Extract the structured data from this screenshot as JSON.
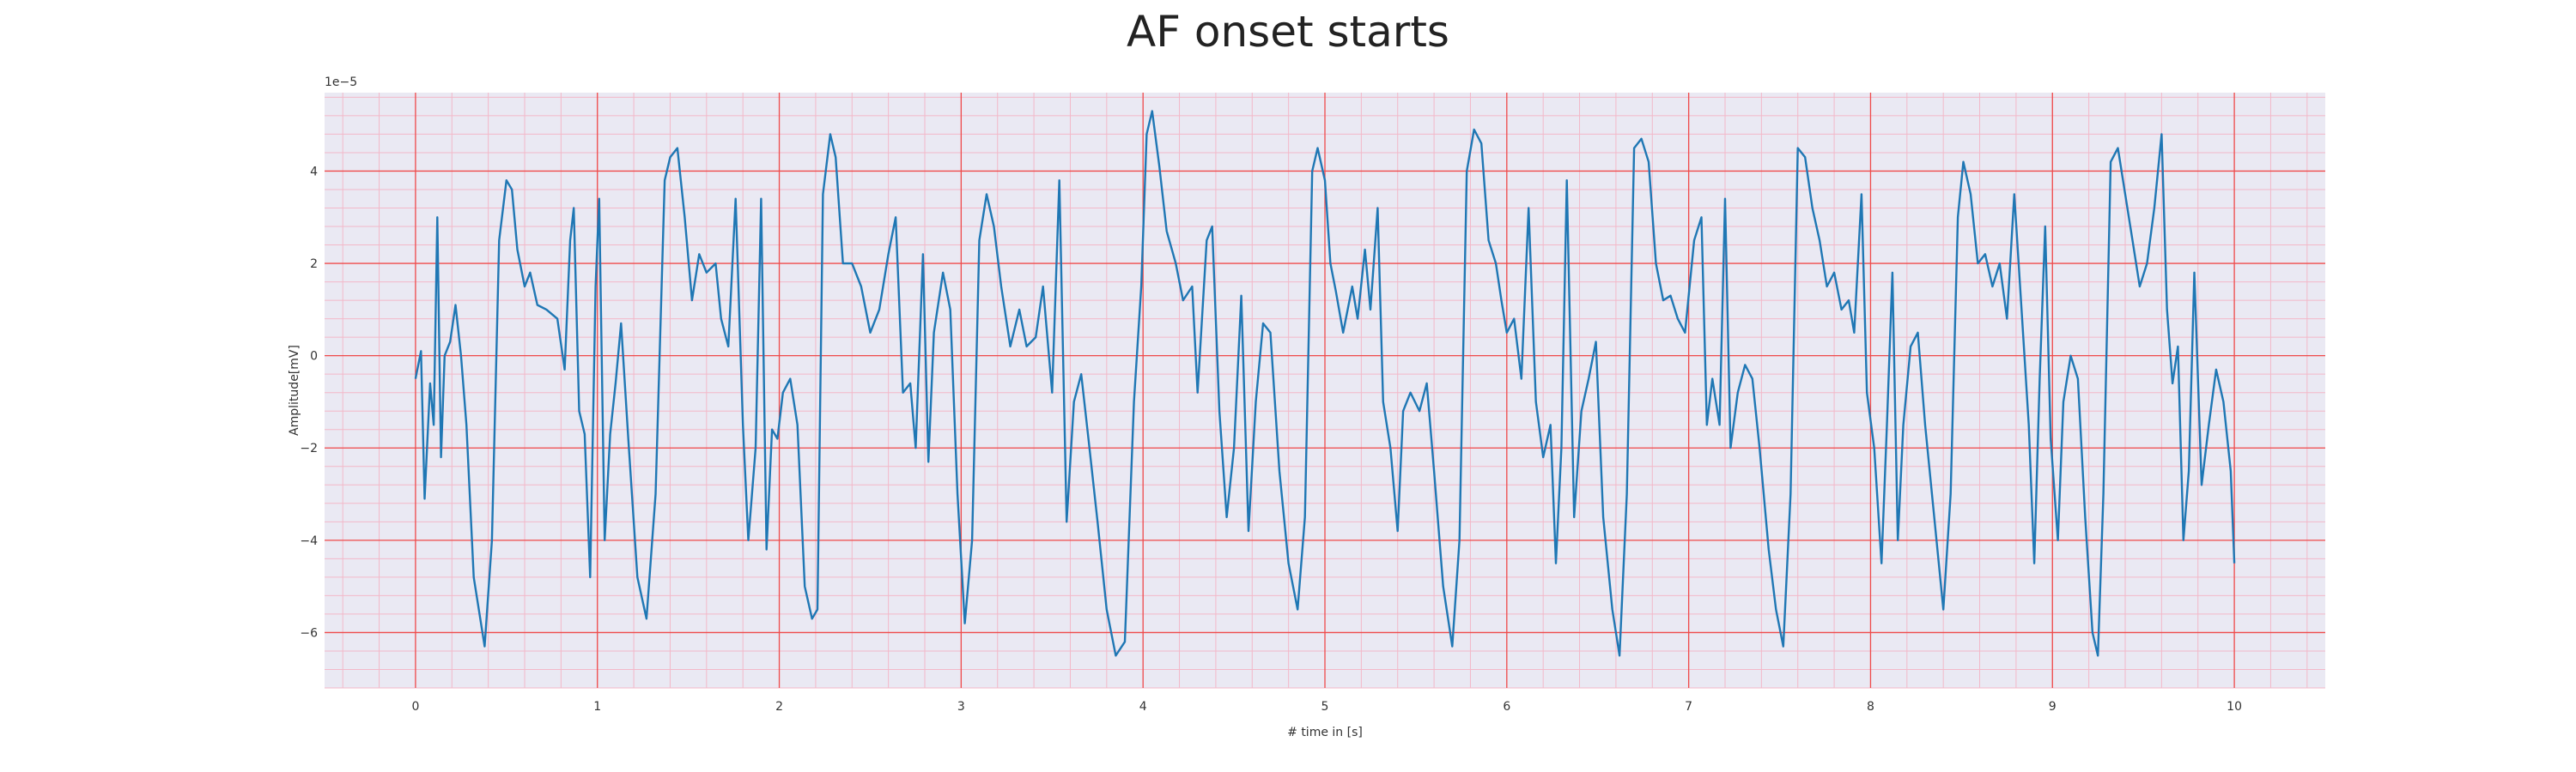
{
  "chart_data": {
    "type": "line",
    "title": "AF onset starts",
    "xlabel": "# time in [s]",
    "ylabel": "Amplitude[mV]",
    "y_multiplier": "1e−5",
    "xlim": [
      -0.5,
      10.5
    ],
    "ylim": [
      -7.2,
      5.7
    ],
    "x_ticks": [
      0,
      1,
      2,
      3,
      4,
      5,
      6,
      7,
      8,
      9,
      10
    ],
    "x_tick_labels": [
      "0",
      "1",
      "2",
      "3",
      "4",
      "5",
      "6",
      "7",
      "8",
      "9",
      "10"
    ],
    "y_ticks": [
      -6,
      -4,
      -2,
      0,
      2,
      4
    ],
    "y_tick_labels": [
      "−6",
      "−4",
      "−2",
      "0",
      "2",
      "4"
    ],
    "grid": true,
    "minor_grid": true,
    "colors": {
      "plot_background": "#eae9f3",
      "major_grid": "#ef4b4b",
      "minor_grid": "#f3b8c8",
      "line": "#1f77b4"
    },
    "series": [
      {
        "values": [
          [
            0.0,
            -0.5
          ],
          [
            0.03,
            0.1
          ],
          [
            0.05,
            -3.1
          ],
          [
            0.08,
            -0.6
          ],
          [
            0.1,
            -1.5
          ],
          [
            0.12,
            3.0
          ],
          [
            0.14,
            -2.2
          ],
          [
            0.16,
            0.0
          ],
          [
            0.19,
            0.3
          ],
          [
            0.22,
            1.1
          ],
          [
            0.25,
            0.0
          ],
          [
            0.28,
            -1.5
          ],
          [
            0.32,
            -4.8
          ],
          [
            0.38,
            -6.3
          ],
          [
            0.42,
            -4.0
          ],
          [
            0.46,
            2.5
          ],
          [
            0.5,
            3.8
          ],
          [
            0.53,
            3.6
          ],
          [
            0.56,
            2.3
          ],
          [
            0.6,
            1.5
          ],
          [
            0.63,
            1.8
          ],
          [
            0.67,
            1.1
          ],
          [
            0.72,
            1.0
          ],
          [
            0.78,
            0.8
          ],
          [
            0.82,
            -0.3
          ],
          [
            0.85,
            2.5
          ],
          [
            0.87,
            3.2
          ],
          [
            0.9,
            -1.2
          ],
          [
            0.93,
            -1.7
          ],
          [
            0.96,
            -4.8
          ],
          [
            0.99,
            1.5
          ],
          [
            1.01,
            3.4
          ],
          [
            1.04,
            -4.0
          ],
          [
            1.07,
            -1.7
          ],
          [
            1.1,
            -0.6
          ],
          [
            1.13,
            0.7
          ],
          [
            1.17,
            -1.8
          ],
          [
            1.22,
            -4.8
          ],
          [
            1.27,
            -5.7
          ],
          [
            1.32,
            -3.0
          ],
          [
            1.37,
            3.8
          ],
          [
            1.4,
            4.3
          ],
          [
            1.44,
            4.5
          ],
          [
            1.48,
            3.0
          ],
          [
            1.52,
            1.2
          ],
          [
            1.56,
            2.2
          ],
          [
            1.6,
            1.8
          ],
          [
            1.65,
            2.0
          ],
          [
            1.68,
            0.8
          ],
          [
            1.72,
            0.2
          ],
          [
            1.76,
            3.4
          ],
          [
            1.8,
            -1.5
          ],
          [
            1.83,
            -4.0
          ],
          [
            1.87,
            -2.0
          ],
          [
            1.9,
            3.4
          ],
          [
            1.93,
            -4.2
          ],
          [
            1.96,
            -1.6
          ],
          [
            1.99,
            -1.8
          ],
          [
            2.02,
            -0.8
          ],
          [
            2.06,
            -0.5
          ],
          [
            2.1,
            -1.5
          ],
          [
            2.14,
            -5.0
          ],
          [
            2.18,
            -5.7
          ],
          [
            2.21,
            -5.5
          ],
          [
            2.24,
            3.5
          ],
          [
            2.28,
            4.8
          ],
          [
            2.31,
            4.3
          ],
          [
            2.35,
            2.0
          ],
          [
            2.4,
            2.0
          ],
          [
            2.45,
            1.5
          ],
          [
            2.5,
            0.5
          ],
          [
            2.55,
            1.0
          ],
          [
            2.6,
            2.2
          ],
          [
            2.64,
            3.0
          ],
          [
            2.68,
            -0.8
          ],
          [
            2.72,
            -0.6
          ],
          [
            2.75,
            -2.0
          ],
          [
            2.79,
            2.2
          ],
          [
            2.82,
            -2.3
          ],
          [
            2.85,
            0.5
          ],
          [
            2.9,
            1.8
          ],
          [
            2.94,
            1.0
          ],
          [
            2.98,
            -3.0
          ],
          [
            3.02,
            -5.8
          ],
          [
            3.06,
            -4.0
          ],
          [
            3.1,
            2.5
          ],
          [
            3.14,
            3.5
          ],
          [
            3.18,
            2.8
          ],
          [
            3.22,
            1.5
          ],
          [
            3.27,
            0.2
          ],
          [
            3.32,
            1.0
          ],
          [
            3.36,
            0.2
          ],
          [
            3.41,
            0.4
          ],
          [
            3.45,
            1.5
          ],
          [
            3.5,
            -0.8
          ],
          [
            3.54,
            3.8
          ],
          [
            3.58,
            -3.6
          ],
          [
            3.62,
            -1.0
          ],
          [
            3.66,
            -0.4
          ],
          [
            3.7,
            -1.8
          ],
          [
            3.75,
            -3.6
          ],
          [
            3.8,
            -5.5
          ],
          [
            3.85,
            -6.5
          ],
          [
            3.9,
            -6.2
          ],
          [
            3.95,
            -1.0
          ],
          [
            3.99,
            1.5
          ],
          [
            4.02,
            4.8
          ],
          [
            4.05,
            5.3
          ],
          [
            4.09,
            4.1
          ],
          [
            4.13,
            2.7
          ],
          [
            4.18,
            2.0
          ],
          [
            4.22,
            1.2
          ],
          [
            4.27,
            1.5
          ],
          [
            4.3,
            -0.8
          ],
          [
            4.35,
            2.5
          ],
          [
            4.38,
            2.8
          ],
          [
            4.42,
            -1.2
          ],
          [
            4.46,
            -3.5
          ],
          [
            4.5,
            -2.0
          ],
          [
            4.54,
            1.3
          ],
          [
            4.58,
            -3.8
          ],
          [
            4.62,
            -1.0
          ],
          [
            4.66,
            0.7
          ],
          [
            4.7,
            0.5
          ],
          [
            4.75,
            -2.5
          ],
          [
            4.8,
            -4.5
          ],
          [
            4.85,
            -5.5
          ],
          [
            4.89,
            -3.5
          ],
          [
            4.93,
            4.0
          ],
          [
            4.96,
            4.5
          ],
          [
            5.0,
            3.8
          ],
          [
            5.03,
            2.0
          ],
          [
            5.06,
            1.4
          ],
          [
            5.1,
            0.5
          ],
          [
            5.15,
            1.5
          ],
          [
            5.18,
            0.8
          ],
          [
            5.22,
            2.3
          ],
          [
            5.25,
            1.0
          ],
          [
            5.29,
            3.2
          ],
          [
            5.32,
            -1.0
          ],
          [
            5.36,
            -2.0
          ],
          [
            5.4,
            -3.8
          ],
          [
            5.43,
            -1.2
          ],
          [
            5.47,
            -0.8
          ],
          [
            5.52,
            -1.2
          ],
          [
            5.56,
            -0.6
          ],
          [
            5.6,
            -2.5
          ],
          [
            5.65,
            -5.0
          ],
          [
            5.7,
            -6.3
          ],
          [
            5.74,
            -4.0
          ],
          [
            5.78,
            4.0
          ],
          [
            5.82,
            4.9
          ],
          [
            5.86,
            4.6
          ],
          [
            5.9,
            2.5
          ],
          [
            5.94,
            2.0
          ],
          [
            5.97,
            1.2
          ],
          [
            6.0,
            0.5
          ],
          [
            6.04,
            0.8
          ],
          [
            6.08,
            -0.5
          ],
          [
            6.12,
            3.2
          ],
          [
            6.16,
            -1.0
          ],
          [
            6.2,
            -2.2
          ],
          [
            6.24,
            -1.5
          ],
          [
            6.27,
            -4.5
          ],
          [
            6.3,
            -2.0
          ],
          [
            6.33,
            3.8
          ],
          [
            6.37,
            -3.5
          ],
          [
            6.41,
            -1.2
          ],
          [
            6.45,
            -0.5
          ],
          [
            6.49,
            0.3
          ],
          [
            6.53,
            -3.5
          ],
          [
            6.58,
            -5.5
          ],
          [
            6.62,
            -6.5
          ],
          [
            6.66,
            -3.0
          ],
          [
            6.7,
            4.5
          ],
          [
            6.74,
            4.7
          ],
          [
            6.78,
            4.2
          ],
          [
            6.82,
            2.0
          ],
          [
            6.86,
            1.2
          ],
          [
            6.9,
            1.3
          ],
          [
            6.94,
            0.8
          ],
          [
            6.98,
            0.5
          ],
          [
            7.03,
            2.5
          ],
          [
            7.07,
            3.0
          ],
          [
            7.1,
            -1.5
          ],
          [
            7.13,
            -0.5
          ],
          [
            7.17,
            -1.5
          ],
          [
            7.2,
            3.4
          ],
          [
            7.23,
            -2.0
          ],
          [
            7.27,
            -0.8
          ],
          [
            7.31,
            -0.2
          ],
          [
            7.35,
            -0.5
          ],
          [
            7.39,
            -2.0
          ],
          [
            7.44,
            -4.2
          ],
          [
            7.48,
            -5.5
          ],
          [
            7.52,
            -6.3
          ],
          [
            7.56,
            -3.0
          ],
          [
            7.6,
            4.5
          ],
          [
            7.64,
            4.3
          ],
          [
            7.68,
            3.2
          ],
          [
            7.72,
            2.5
          ],
          [
            7.76,
            1.5
          ],
          [
            7.8,
            1.8
          ],
          [
            7.84,
            1.0
          ],
          [
            7.88,
            1.2
          ],
          [
            7.91,
            0.5
          ],
          [
            7.95,
            3.5
          ],
          [
            7.98,
            -0.8
          ],
          [
            8.02,
            -2.0
          ],
          [
            8.06,
            -4.5
          ],
          [
            8.09,
            -1.5
          ],
          [
            8.12,
            1.8
          ],
          [
            8.15,
            -4.0
          ],
          [
            8.18,
            -1.5
          ],
          [
            8.22,
            0.2
          ],
          [
            8.26,
            0.5
          ],
          [
            8.3,
            -1.5
          ],
          [
            8.35,
            -3.5
          ],
          [
            8.4,
            -5.5
          ],
          [
            8.44,
            -3.0
          ],
          [
            8.48,
            3.0
          ],
          [
            8.51,
            4.2
          ],
          [
            8.55,
            3.5
          ],
          [
            8.59,
            2.0
          ],
          [
            8.63,
            2.2
          ],
          [
            8.67,
            1.5
          ],
          [
            8.71,
            2.0
          ],
          [
            8.75,
            0.8
          ],
          [
            8.79,
            3.5
          ],
          [
            8.83,
            1.0
          ],
          [
            8.87,
            -1.5
          ],
          [
            8.9,
            -4.5
          ],
          [
            8.93,
            -0.5
          ],
          [
            8.96,
            2.8
          ],
          [
            8.99,
            -1.8
          ],
          [
            9.03,
            -4.0
          ],
          [
            9.06,
            -1.0
          ],
          [
            9.1,
            0.0
          ],
          [
            9.14,
            -0.5
          ],
          [
            9.18,
            -3.5
          ],
          [
            9.22,
            -6.0
          ],
          [
            9.25,
            -6.5
          ],
          [
            9.28,
            -3.0
          ],
          [
            9.32,
            4.2
          ],
          [
            9.36,
            4.5
          ],
          [
            9.4,
            3.5
          ],
          [
            9.44,
            2.5
          ],
          [
            9.48,
            1.5
          ],
          [
            9.52,
            2.0
          ],
          [
            9.56,
            3.2
          ],
          [
            9.6,
            4.8
          ],
          [
            9.63,
            1.0
          ],
          [
            9.66,
            -0.6
          ],
          [
            9.69,
            0.2
          ],
          [
            9.72,
            -4.0
          ],
          [
            9.75,
            -2.5
          ],
          [
            9.78,
            1.8
          ],
          [
            9.82,
            -2.8
          ],
          [
            9.86,
            -1.5
          ],
          [
            9.9,
            -0.3
          ],
          [
            9.94,
            -1.0
          ],
          [
            9.98,
            -2.5
          ],
          [
            10.0,
            -4.5
          ]
        ]
      }
    ]
  }
}
